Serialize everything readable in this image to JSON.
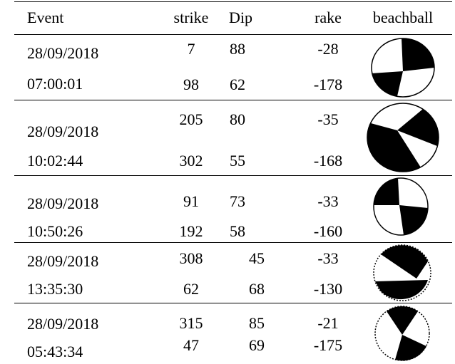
{
  "table": {
    "header": [
      "Event",
      "strike",
      "Dip",
      "rake",
      "beachball"
    ],
    "rows": [
      {
        "event": [
          "28/09/2018",
          "07:00:01"
        ],
        "planes": [
          [
            7,
            88,
            -28
          ],
          [
            98,
            62,
            -178
          ]
        ]
      },
      {
        "event": [
          "28/09/2018",
          "10:02:44"
        ],
        "planes": [
          [
            205,
            80,
            -35
          ],
          [
            302,
            55,
            -168
          ]
        ]
      },
      {
        "event": [
          "28/09/2018",
          "10:50:26"
        ],
        "planes": [
          [
            91,
            73,
            -33
          ],
          [
            192,
            58,
            -160
          ]
        ]
      },
      {
        "event": [
          "28/09/2018",
          "13:35:30"
        ],
        "planes": [
          [
            308,
            45,
            -33
          ],
          [
            62,
            68,
            -130
          ]
        ]
      },
      {
        "event": [
          "28/09/2018",
          "05:43:34"
        ],
        "planes": [
          [
            315,
            85,
            -21
          ],
          [
            47,
            69,
            -175
          ]
        ]
      }
    ]
  }
}
